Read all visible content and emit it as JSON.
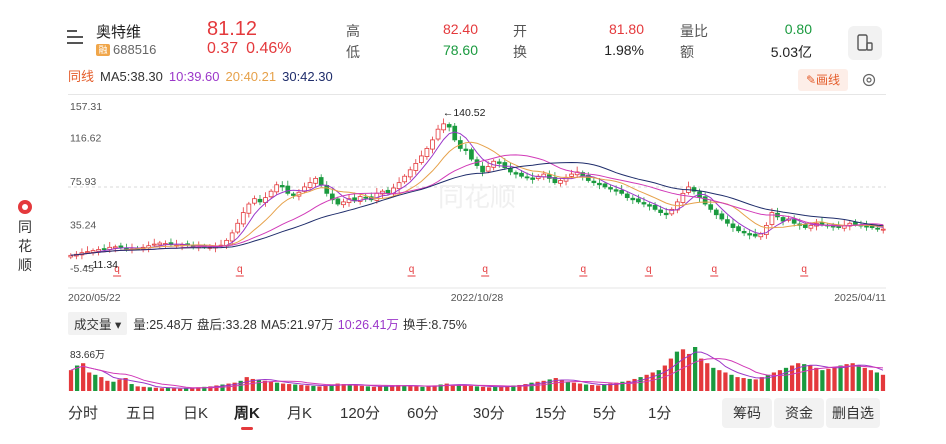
{
  "brand": {
    "chars": [
      "同",
      "花",
      "顺"
    ]
  },
  "stock": {
    "name": "奥特维",
    "code": "688516",
    "badge": "融",
    "price": "81.12",
    "change": "0.37",
    "change_pct": "0.46%"
  },
  "quotes": [
    {
      "label": "高",
      "value": "82.40",
      "color": "#e4393c"
    },
    {
      "label": "开",
      "value": "81.80",
      "color": "#e4393c"
    },
    {
      "label": "量比",
      "value": "0.80",
      "color": "#1a9a3f"
    },
    {
      "label": "低",
      "value": "78.60",
      "color": "#1a9a3f"
    },
    {
      "label": "换",
      "value": "1.98%",
      "color": "#222222"
    },
    {
      "label": "额",
      "value": "5.03亿",
      "color": "#222222"
    }
  ],
  "ma": {
    "label": "同线",
    "ma5": "MA5:38.30",
    "ma10": "10:39.60",
    "ma20": "20:40.21",
    "ma30": "30:42.30"
  },
  "draw_button": "画线",
  "colors": {
    "up": "#e4393c",
    "down": "#1a9a3f",
    "ma5": "#9b37c9",
    "ma10": "#e6a14a",
    "ma20": "#d13ab8",
    "ma30": "#1f2d6b"
  },
  "chart_data": {
    "type": "candlestick",
    "y_tick_labels": [
      "157.31",
      "116.62",
      "75.93",
      "35.24",
      "-5.45"
    ],
    "ylim": [
      -5.45,
      157.31
    ],
    "x_tick_labels": [
      "2020/05/22",
      "2022/10/28",
      "2025/04/11"
    ],
    "annotations": {
      "high": "←140.52",
      "low": "←11.34",
      "high_value": 140.52,
      "low_value": 11.34
    },
    "watermark": "同花顺",
    "close_series": [
      12.0,
      13.0,
      14.5,
      15.5,
      16.5,
      17.5,
      18.0,
      19.5,
      20.0,
      19.5,
      18.5,
      18.0,
      18.5,
      19.5,
      21.0,
      22.5,
      23.5,
      23.0,
      22.0,
      21.5,
      22.0,
      21.5,
      20.5,
      20.0,
      20.0,
      19.5,
      20.0,
      21.5,
      26.0,
      33.0,
      42.0,
      52.0,
      60.0,
      65.0,
      62.0,
      66.0,
      72.0,
      78.0,
      76.0,
      70.0,
      68.0,
      71.0,
      76.0,
      80.0,
      84.0,
      78.0,
      70.0,
      64.0,
      60.0,
      62.0,
      65.0,
      63.0,
      67.0,
      66.0,
      64.0,
      70.0,
      72.0,
      70.0,
      75.0,
      80.0,
      86.0,
      92.0,
      98.0,
      105.0,
      112.0,
      120.0,
      130.0,
      135.0,
      132.0,
      120.0,
      112.0,
      110.0,
      102.0,
      96.0,
      90.0,
      95.0,
      100.0,
      98.0,
      94.0,
      90.0,
      88.0,
      86.0,
      85.0,
      83.0,
      86.0,
      88.0,
      84.0,
      80.0,
      82.0,
      85.0,
      88.0,
      90.0,
      86.0,
      82.0,
      80.0,
      78.0,
      76.0,
      74.0,
      72.0,
      70.0,
      66.0,
      64.0,
      62.0,
      60.0,
      58.0,
      55.0,
      52.0,
      50.0,
      55.0,
      62.0,
      70.0,
      76.0,
      72.0,
      66.0,
      60.0,
      55.0,
      50.0,
      46.0,
      42.0,
      38.0,
      35.0,
      33.0,
      31.0,
      30.0,
      32.0,
      40.0,
      52.0,
      48.0,
      44.0,
      46.0,
      42.0,
      40.0,
      38.0,
      40.0,
      42.0,
      41.0,
      40.0,
      39.0,
      38.0,
      40.0,
      42.0,
      41.0,
      40.0,
      39.0,
      38.0,
      37.0,
      36.5
    ],
    "event_markers": [
      "q",
      "q",
      "q",
      "q",
      "q",
      "q",
      "q",
      "q",
      "q",
      "q",
      "q"
    ]
  },
  "volume": {
    "selector": "成交量",
    "qty": "量:25.48万",
    "pankou": "盘后:33.28",
    "ma5": "MA5:21.97万",
    "ma10": "10:26.41万",
    "turnover": "换手:8.75%",
    "max_label": "83.66万",
    "volume_series": [
      45,
      55,
      60,
      40,
      35,
      30,
      22,
      20,
      25,
      28,
      15,
      10,
      9,
      8,
      7,
      6,
      7,
      6,
      5,
      6,
      7,
      8,
      9,
      10,
      12,
      14,
      16,
      18,
      22,
      30,
      26,
      24,
      22,
      20,
      18,
      16,
      15,
      14,
      13,
      12,
      11,
      10,
      12,
      14,
      16,
      15,
      13,
      12,
      11,
      10,
      9,
      10,
      11,
      12,
      13,
      12,
      11,
      10,
      9,
      10,
      12,
      14,
      16,
      14,
      13,
      12,
      11,
      10,
      9,
      8,
      9,
      10,
      11,
      12,
      13,
      15,
      18,
      20,
      22,
      25,
      28,
      24,
      20,
      18,
      16,
      14,
      13,
      12,
      14,
      16,
      18,
      20,
      22,
      26,
      30,
      35,
      40,
      45,
      55,
      70,
      85,
      90,
      80,
      95,
      70,
      60,
      50,
      45,
      40,
      35,
      30,
      28,
      26,
      25,
      30,
      35,
      40,
      45,
      50,
      55,
      60,
      58,
      55,
      50,
      45,
      48,
      52,
      55,
      58,
      60,
      55,
      50,
      45,
      40,
      35
    ]
  },
  "periods": [
    "分时",
    "五日",
    "日K",
    "周K",
    "月K",
    "120分",
    "60分",
    "30分",
    "15分",
    "5分",
    "1分"
  ],
  "active_period": "周K",
  "actions": [
    "筹码",
    "资金",
    "删自选"
  ]
}
